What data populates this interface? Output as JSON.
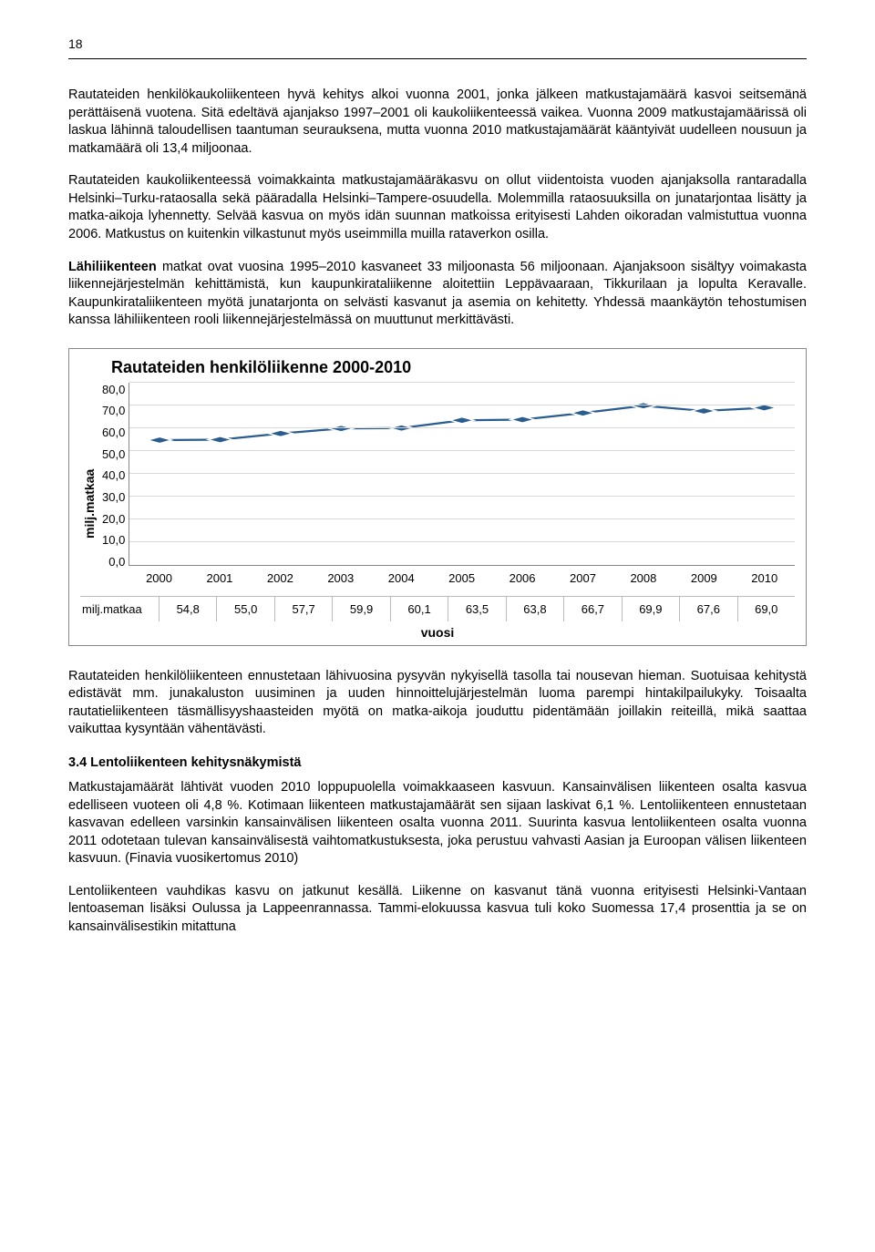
{
  "page_number": "18",
  "paragraphs": {
    "p1": "Rautateiden henkilökaukoliikenteen hyvä kehitys alkoi vuonna 2001, jonka jälkeen matkustajamäärä kasvoi seitsemänä perättäisenä vuotena. Sitä edeltävä ajanjakso 1997–2001 oli kaukoliikenteessä vaikea. Vuonna 2009 matkustajamäärissä oli laskua lähinnä taloudellisen taantuman seurauksena, mutta vuonna 2010 matkustajamäärät kääntyivät uudelleen nousuun ja matkamäärä oli 13,4 miljoonaa.",
    "p2": "Rautateiden kaukoliikenteessä voimakkainta matkustajamääräkasvu on ollut viidentoista vuoden ajanjaksolla rantaradalla Helsinki–Turku-rataosalla sekä pääradalla Helsinki–Tampere-osuudella. Molemmilla rataosuuksilla on junatarjontaa lisätty ja matka-aikoja lyhennetty. Selvää kasvua on myös idän suunnan matkoissa erityisesti Lahden oikoradan valmistuttua vuonna 2006. Matkustus on kuitenkin vilkastunut myös useimmilla muilla rataverkon osilla.",
    "p3a_bold": "Lähiliikenteen",
    "p3b": " matkat ovat vuosina 1995–2010 kasvaneet 33 miljoonasta 56 miljoonaan. Ajanjaksoon sisältyy voimakasta liikennejärjestelmän kehittämistä, kun kaupunkirataliikenne aloitettiin Leppävaaraan, Tikkurilaan ja lopulta Keravalle. Kaupunkirataliikenteen myötä junatarjonta on selvästi kasvanut ja asemia on kehitetty. Yhdessä maankäytön tehostumisen kanssa lähiliikenteen rooli liikennejärjestelmässä on muuttunut merkittävästi.",
    "p4": "Rautateiden henkilöliikenteen ennustetaan lähivuosina pysyvän nykyisellä tasolla tai nousevan hieman. Suotuisaa kehitystä edistävät mm. junakaluston uusiminen ja uuden hinnoittelujärjestelmän luoma parempi hintakilpailukyky. Toisaalta rautatieliikenteen täsmällisyyshaasteiden myötä on matka-aikoja jouduttu pidentämään joillakin reiteillä, mikä saattaa vaikuttaa kysyntään vähentävästi.",
    "p5": "Matkustajamäärät lähtivät vuoden 2010 loppupuolella voimakkaaseen kasvuun. Kansainvälisen liikenteen osalta kasvua edelliseen vuoteen oli 4,8 %. Kotimaan liikenteen matkustajamäärät sen sijaan laskivat 6,1 %. Lentoliikenteen ennustetaan kasvavan edelleen varsinkin kansainvälisen liikenteen osalta vuonna 2011. Suurinta kasvua lentoliikenteen osalta vuonna 2011 odotetaan tulevan kansainvälisestä vaihtomatkustuksesta, joka perustuu vahvasti Aasian ja Euroopan välisen liikenteen kasvuun. (Finavia vuosikertomus 2010)",
    "p6": "Lentoliikenteen vauhdikas kasvu on jatkunut kesällä. Liikenne on kasvanut tänä vuonna erityisesti Helsinki-Vantaan lentoaseman lisäksi Oulussa ja Lappeenrannassa. Tammi-elokuussa kasvua tuli koko Suomessa 17,4 prosenttia ja se on kansainvälisestikin mitattuna"
  },
  "section_heading": "3.4  Lentoliikenteen kehitysnäkymistä",
  "chart": {
    "type": "line",
    "title": "Rautateiden henkilöliikenne 2000-2010",
    "ylabel": "milj.matkaa",
    "xlabel": "vuosi",
    "ylim": [
      0,
      80
    ],
    "yticks": [
      "80,0",
      "70,0",
      "60,0",
      "50,0",
      "40,0",
      "30,0",
      "20,0",
      "10,0",
      "0,0"
    ],
    "categories": [
      "2000",
      "2001",
      "2002",
      "2003",
      "2004",
      "2005",
      "2006",
      "2007",
      "2008",
      "2009",
      "2010"
    ],
    "values": [
      54.8,
      55.0,
      57.7,
      59.9,
      60.1,
      63.5,
      63.8,
      66.7,
      69.9,
      67.6,
      69.0
    ],
    "value_labels": [
      "54,8",
      "55,0",
      "57,7",
      "59,9",
      "60,1",
      "63,5",
      "63,8",
      "66,7",
      "69,9",
      "67,6",
      "69,0"
    ],
    "row_label": "milj.matkaa",
    "line_color": "#2a5d8f",
    "marker_color": "#2a5d8f",
    "marker_shape": "diamond",
    "marker_size": 6,
    "grid_color": "#d9d9d9",
    "background_color": "#ffffff",
    "title_fontsize": 18,
    "label_fontsize": 14
  }
}
